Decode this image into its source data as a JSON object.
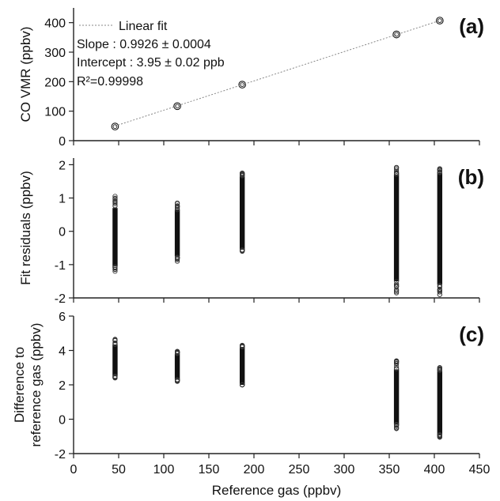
{
  "chart_data": [
    {
      "panel": "(a)",
      "type": "scatter",
      "ylabel": "CO VMR (ppbv)",
      "xlim": [
        0,
        450
      ],
      "ylim": [
        0,
        450
      ],
      "yticks": [
        0,
        100,
        200,
        300,
        400
      ],
      "ytick_labels": [
        "0",
        "100",
        "200",
        "300",
        "400"
      ],
      "grid": false,
      "legend": {
        "entries": [
          "Linear fit"
        ],
        "placement": "top-left"
      },
      "annotations": [
        "Slope : 0.9926 ± 0.0004",
        "Intercept : 3.95 ± 0.02 ppb",
        "R²=0.99998"
      ],
      "series": [
        {
          "kind": "points",
          "x": [
            46,
            115,
            187,
            358,
            406
          ],
          "y": [
            48,
            117,
            190,
            360,
            407
          ]
        },
        {
          "name": "Linear fit",
          "kind": "dotted-line",
          "slope": 0.9926,
          "intercept": 3.95,
          "x_range": [
            46,
            406
          ]
        }
      ]
    },
    {
      "panel": "(b)",
      "type": "scatter",
      "ylabel": "Fit residuals (ppbv)",
      "xlim": [
        0,
        450
      ],
      "ylim": [
        -2,
        2.2
      ],
      "yticks": [
        -2,
        -1,
        0,
        1,
        2
      ],
      "ytick_labels": [
        "-2",
        "-1",
        "0",
        "1",
        "2"
      ],
      "grid": false,
      "series": [
        {
          "kind": "point-columns",
          "x": [
            46,
            115,
            187,
            358,
            406
          ],
          "y_min": [
            -1.2,
            -0.9,
            -0.6,
            -1.85,
            -1.9
          ],
          "y_max": [
            1.05,
            0.85,
            1.75,
            1.92,
            1.88
          ],
          "dense_min": [
            -1.05,
            -0.75,
            -0.55,
            -1.5,
            -1.6
          ],
          "dense_max": [
            0.7,
            0.65,
            1.65,
            1.7,
            1.75
          ]
        }
      ]
    },
    {
      "panel": "(c)",
      "type": "scatter",
      "ylabel": "Difference to reference gas (ppbv)",
      "ylabel_lines": [
        "Difference to",
        "reference gas (ppbv)"
      ],
      "xlabel": "Reference gas (ppbv)",
      "xlim": [
        0,
        450
      ],
      "ylim": [
        -2,
        6
      ],
      "yticks": [
        -2,
        0,
        2,
        4,
        6
      ],
      "ytick_labels": [
        "-2",
        "0",
        "2",
        "4",
        "6"
      ],
      "xticks": [
        0,
        50,
        100,
        150,
        200,
        250,
        300,
        350,
        400,
        450
      ],
      "xtick_labels": [
        "0",
        "50",
        "100",
        "150",
        "200",
        "250",
        "300",
        "350",
        "400",
        "450"
      ],
      "grid": false,
      "series": [
        {
          "kind": "point-columns",
          "x": [
            46,
            115,
            187,
            358,
            406
          ],
          "y_min": [
            2.4,
            2.2,
            2.0,
            -0.55,
            -1.05
          ],
          "y_max": [
            4.65,
            3.95,
            4.3,
            3.4,
            3.0
          ],
          "dense_min": [
            2.5,
            2.3,
            2.0,
            -0.3,
            -0.9
          ],
          "dense_max": [
            4.35,
            3.8,
            4.2,
            2.9,
            2.8
          ]
        }
      ]
    }
  ]
}
